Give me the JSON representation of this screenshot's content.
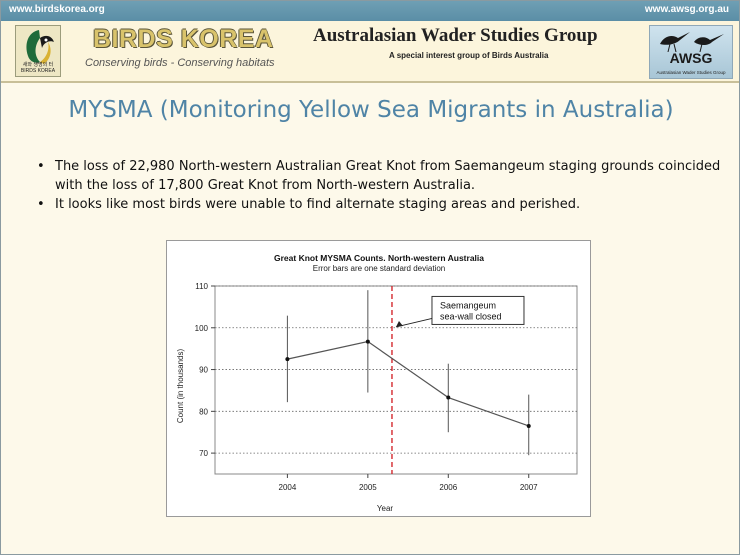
{
  "header": {
    "left_url": "www.birdskorea.org",
    "right_url": "www.awsg.org.au",
    "bk_title": "BIRDS KOREA",
    "bk_tagline": "Conserving birds - Conserving habitats",
    "bk_logo_text": "새와 생명의 터 BIRDS KOREA",
    "awsg_title": "Australasian Wader Studies Group",
    "awsg_subtitle": "A special interest group of Birds Australia",
    "awsg_logo_name": "AWSG",
    "awsg_logo_small": "Australasian Wader Studies Group"
  },
  "slide": {
    "title": "MYSMA (Monitoring Yellow Sea Migrants in Australia)",
    "bullets": [
      "The loss of 22,980 North-western Australian Great Knot from Saemangeum staging grounds coincided with the loss of 17,800 Great Knot from North-western Australia.",
      "It looks like most birds were unable to find alternate staging areas and perished."
    ]
  },
  "colors": {
    "topbar": "#5b8ea6",
    "title": "#4f84a6",
    "event_line": "#d0191f",
    "series": "#555555"
  },
  "chart_data": {
    "type": "line",
    "title": "Great Knot MYSMA Counts. North-western Australia",
    "subtitle": "Error bars are one standard deviation",
    "xlabel": "Year",
    "ylabel": "Count (in thousands)",
    "categories": [
      "2004",
      "2005",
      "2006",
      "2007"
    ],
    "series": [
      {
        "values": [
          92.5,
          96.7,
          83.3,
          76.5
        ],
        "error_low": [
          82.2,
          84.5,
          75.0,
          69.5
        ],
        "error_high": [
          102.9,
          109.0,
          91.4,
          84.0
        ]
      }
    ],
    "ylim": [
      65,
      110
    ],
    "yticks": [
      70,
      80,
      90,
      100,
      110
    ],
    "grid": "horizontal dotted",
    "event_line_x": 2005.3,
    "annotation": {
      "line1": "Saemangeum",
      "line2": "sea-wall closed"
    }
  }
}
